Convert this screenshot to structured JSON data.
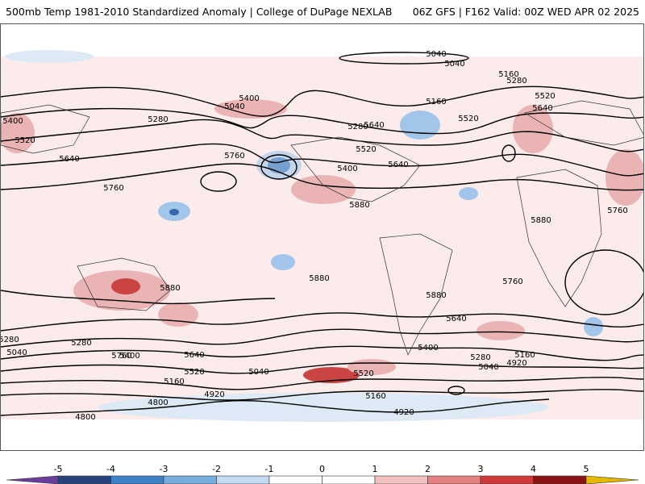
{
  "header": {
    "left_title": "500mb Temp 1981-2010 Standardized Anomaly | College of DuPage NEXLAB",
    "right_title": "06Z GFS | F162 Valid: 00Z WED APR 02 2025"
  },
  "colorbar": {
    "ticks": [
      "-5",
      "-4",
      "-3",
      "-2",
      "-1",
      "0",
      "1",
      "2",
      "3",
      "4",
      "5"
    ],
    "colors": [
      "#6a3d9a",
      "#26427a",
      "#3d82c7",
      "#77aee0",
      "#c4daf1",
      "#ffffff",
      "#ffffff",
      "#f3c0c0",
      "#e48282",
      "#cf3b3b",
      "#8a1414",
      "#e6b800"
    ]
  },
  "map": {
    "contour_labels": [
      "5040",
      "5040",
      "5160",
      "5280",
      "5520",
      "5640",
      "5160",
      "5400",
      "5040",
      "5400",
      "5520",
      "5280",
      "5640",
      "5520",
      "5640",
      "5760",
      "5400",
      "5280",
      "5520",
      "5640",
      "5760",
      "5880",
      "5880",
      "5760",
      "5640",
      "5400",
      "5280",
      "5520",
      "5160",
      "5040",
      "4920",
      "4800",
      "5880",
      "5880",
      "5760",
      "5640",
      "5400",
      "5280",
      "5160",
      "5040",
      "4920",
      "5160",
      "5520",
      "4920",
      "4800",
      "5040",
      "5280",
      "5880",
      "5760"
    ],
    "colors": {
      "warm": "#e8a3a3",
      "warm_strong": "#c83a3a",
      "cold": "#9cc3e8",
      "cold_strong": "#2c5fa8",
      "contour": "#000000"
    }
  }
}
